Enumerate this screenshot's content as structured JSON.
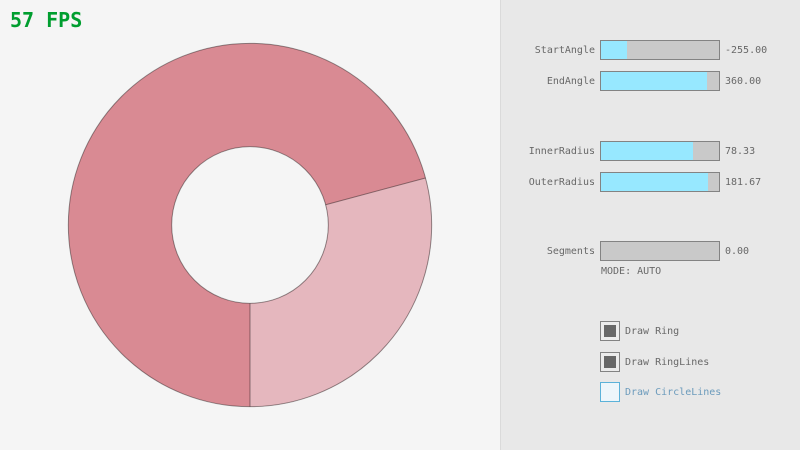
{
  "fps": {
    "text": "57 FPS",
    "color": "#009E2F"
  },
  "canvas": {
    "background": "#F5F5F5"
  },
  "chart_data": {
    "type": "ring",
    "center": [
      250,
      225
    ],
    "inner_radius": 78.33,
    "outer_radius": 181.67,
    "start_angle": -255,
    "end_angle": 360,
    "segments": 0,
    "fill_single_pass": "#E5B7BE",
    "fill_double_pass": "#D98A93",
    "outline_color": "rgba(0,0,0,0.40)",
    "draw_ring": true,
    "draw_ring_lines": true,
    "draw_circle_lines": false
  },
  "panel": {
    "background": "#E8E8E8",
    "divider_color": "#DADADA",
    "sliders": [
      {
        "label": "StartAngle",
        "value": "-255.00",
        "fraction": 0.2167
      },
      {
        "label": "EndAngle",
        "value": "360.00",
        "fraction": 0.9
      },
      {
        "label": "InnerRadius",
        "value": "78.33",
        "fraction": 0.7833
      },
      {
        "label": "OuterRadius",
        "value": "181.67",
        "fraction": 0.9083
      },
      {
        "label": "Segments",
        "value": "0.00",
        "fraction": 0.0
      }
    ],
    "mode_label": "MODE: AUTO",
    "checkboxes": [
      {
        "label": "Draw Ring",
        "checked": true,
        "focused": false
      },
      {
        "label": "Draw RingLines",
        "checked": true,
        "focused": false
      },
      {
        "label": "Draw CircleLines",
        "checked": false,
        "focused": true
      }
    ]
  },
  "theme": {
    "text_color": "#686868",
    "border_color": "#838383",
    "slider_bg": "#C9C9C9",
    "slider_fill": "#97E8FF",
    "check_color": "#686868",
    "checkbox_bg": "#ECECEC",
    "focused_border": "#5BB2D9",
    "focused_text": "#6C9BBC",
    "focused_bg": "#EDF6FB"
  }
}
